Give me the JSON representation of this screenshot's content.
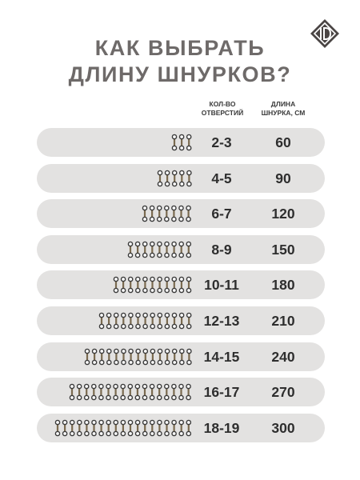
{
  "title": {
    "line1": "КАК ВЫБРАТЬ",
    "line2": "ДЛИНУ ШНУРКОВ?"
  },
  "logo_icon": "brand-logo-diamond-icon",
  "headers": {
    "holes_line1": "КОЛ-ВО",
    "holes_line2": "ОТВЕРСТИЙ",
    "length_line1": "ДЛИНА",
    "length_line2": "ШНУРКА, СМ"
  },
  "colors": {
    "title": "#6e6a69",
    "row_bg": "#e3e2e1",
    "lace": "#7a6a4f",
    "text": "#2e2e2e"
  },
  "rows": [
    {
      "holes_range": "2-3",
      "length": "60",
      "pairs": 3
    },
    {
      "holes_range": "4-5",
      "length": "90",
      "pairs": 5
    },
    {
      "holes_range": "6-7",
      "length": "120",
      "pairs": 7
    },
    {
      "holes_range": "8-9",
      "length": "150",
      "pairs": 9
    },
    {
      "holes_range": "10-11",
      "length": "180",
      "pairs": 11
    },
    {
      "holes_range": "12-13",
      "length": "210",
      "pairs": 13
    },
    {
      "holes_range": "14-15",
      "length": "240",
      "pairs": 15
    },
    {
      "holes_range": "16-17",
      "length": "270",
      "pairs": 17
    },
    {
      "holes_range": "18-19",
      "length": "300",
      "pairs": 19
    }
  ]
}
